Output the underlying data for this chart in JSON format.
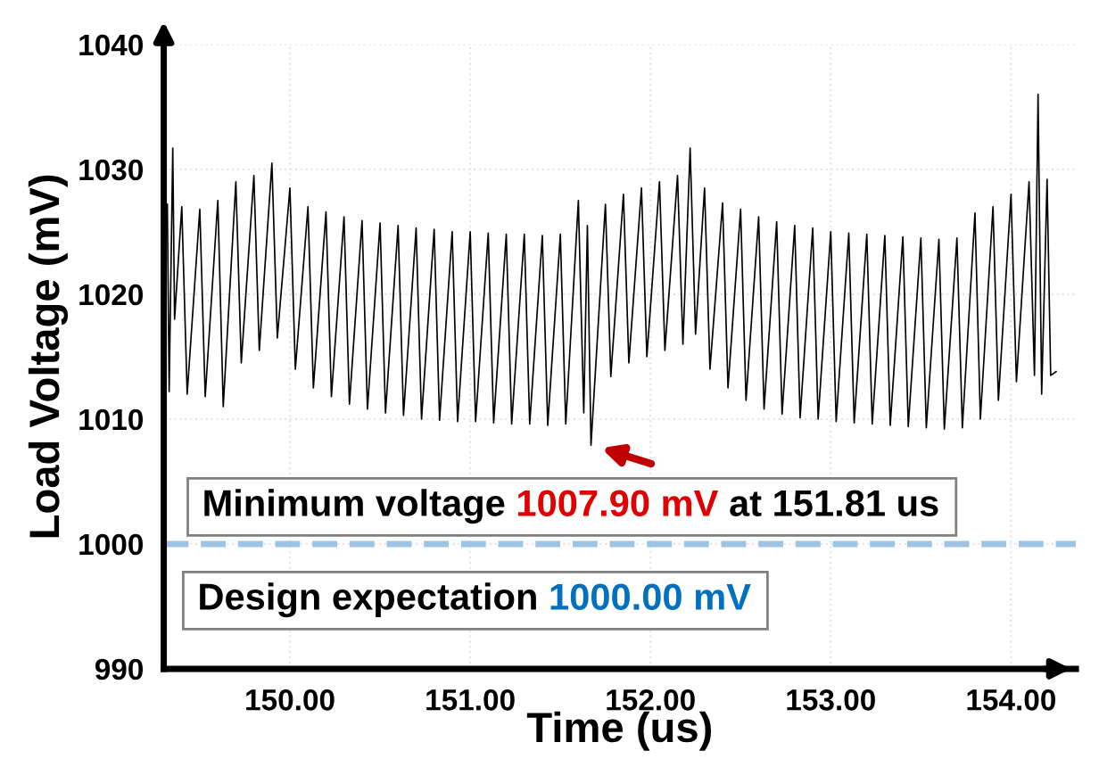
{
  "chart_data": {
    "type": "line",
    "xlabel": "Time (us)",
    "ylabel": "Load Voltage (mV)",
    "xlim": [
      149.3,
      154.36
    ],
    "ylim": [
      990,
      1040
    ],
    "xticks": [
      {
        "value": 150,
        "label": "150.00"
      },
      {
        "value": 151,
        "label": "151.00"
      },
      {
        "value": 152,
        "label": "152.00"
      },
      {
        "value": 153,
        "label": "153.00"
      },
      {
        "value": 154,
        "label": "154.00"
      }
    ],
    "yticks": [
      990,
      1000,
      1010,
      1020,
      1030,
      1040
    ],
    "grid": true,
    "marker": "none",
    "line_style": "solid",
    "annotations": [
      "Minimum voltage",
      "1007.90 mV",
      "at 151.81 us",
      "Design expectation",
      "1000.00 mV"
    ],
    "ref_lines": [
      {
        "axis": "y",
        "value": 1000,
        "color": "#9dc3e6",
        "line_style": "dashed"
      }
    ],
    "series": [
      {
        "color": "#000000",
        "x": [
          149.32,
          149.33,
          149.35,
          149.36,
          149.4,
          149.43,
          149.5,
          149.53,
          149.6,
          149.63,
          149.7,
          149.73,
          149.8,
          149.83,
          149.9,
          149.93,
          150.0,
          150.03,
          150.1,
          150.13,
          150.2,
          150.23,
          150.3,
          150.33,
          150.4,
          150.43,
          150.5,
          150.53,
          150.6,
          150.63,
          150.7,
          150.73,
          150.8,
          150.83,
          150.9,
          150.93,
          151.0,
          151.03,
          151.1,
          151.13,
          151.2,
          151.23,
          151.3,
          151.33,
          151.4,
          151.43,
          151.5,
          151.53,
          151.6,
          151.63,
          151.65,
          151.67,
          151.75,
          151.78,
          151.85,
          151.88,
          151.95,
          151.98,
          152.05,
          152.08,
          152.15,
          152.18,
          152.22,
          152.25,
          152.3,
          152.33,
          152.4,
          152.43,
          152.5,
          152.53,
          152.6,
          152.63,
          152.7,
          152.73,
          152.8,
          152.83,
          152.9,
          152.93,
          153.0,
          153.03,
          153.1,
          153.13,
          153.2,
          153.23,
          153.3,
          153.33,
          153.4,
          153.43,
          153.5,
          153.53,
          153.6,
          153.63,
          153.7,
          153.73,
          153.8,
          153.83,
          153.9,
          153.93,
          154.0,
          154.03,
          154.1,
          154.13,
          154.15,
          154.17,
          154.2,
          154.22,
          154.25
        ],
        "values": [
          1027.2,
          1012.2,
          1031.7,
          1018,
          1027.0,
          1012.0,
          1026.8,
          1011.8,
          1027.5,
          1011.0,
          1029.0,
          1014.5,
          1029.5,
          1015.5,
          1030.5,
          1016.5,
          1028.5,
          1014.0,
          1027.0,
          1012.5,
          1026.6,
          1011.8,
          1026.2,
          1011.2,
          1025.9,
          1010.8,
          1025.7,
          1010.5,
          1025.5,
          1010.3,
          1025.3,
          1010.0,
          1025.2,
          1009.9,
          1025.0,
          1009.8,
          1025.0,
          1009.8,
          1024.9,
          1009.7,
          1024.8,
          1009.6,
          1024.8,
          1009.6,
          1024.7,
          1009.5,
          1024.8,
          1009.6,
          1027.5,
          1010.5,
          1025.5,
          1007.9,
          1027.2,
          1013.4,
          1028.0,
          1014.5,
          1028.5,
          1015.0,
          1029.0,
          1015.5,
          1029.5,
          1016.0,
          1031.7,
          1016.8,
          1028.5,
          1014.0,
          1027.3,
          1012.5,
          1026.8,
          1011.5,
          1026.2,
          1010.8,
          1025.8,
          1010.4,
          1025.5,
          1010.1,
          1025.3,
          1010.0,
          1025.0,
          1009.8,
          1024.9,
          1009.7,
          1024.8,
          1009.6,
          1024.7,
          1009.5,
          1024.6,
          1009.4,
          1024.5,
          1009.3,
          1024.4,
          1009.2,
          1024.5,
          1009.3,
          1026.5,
          1010.0,
          1027.0,
          1011.5,
          1028.0,
          1013.0,
          1029.0,
          1013.5,
          1036.0,
          1012.0,
          1029.2,
          1013.5,
          1013.8
        ]
      }
    ]
  }
}
